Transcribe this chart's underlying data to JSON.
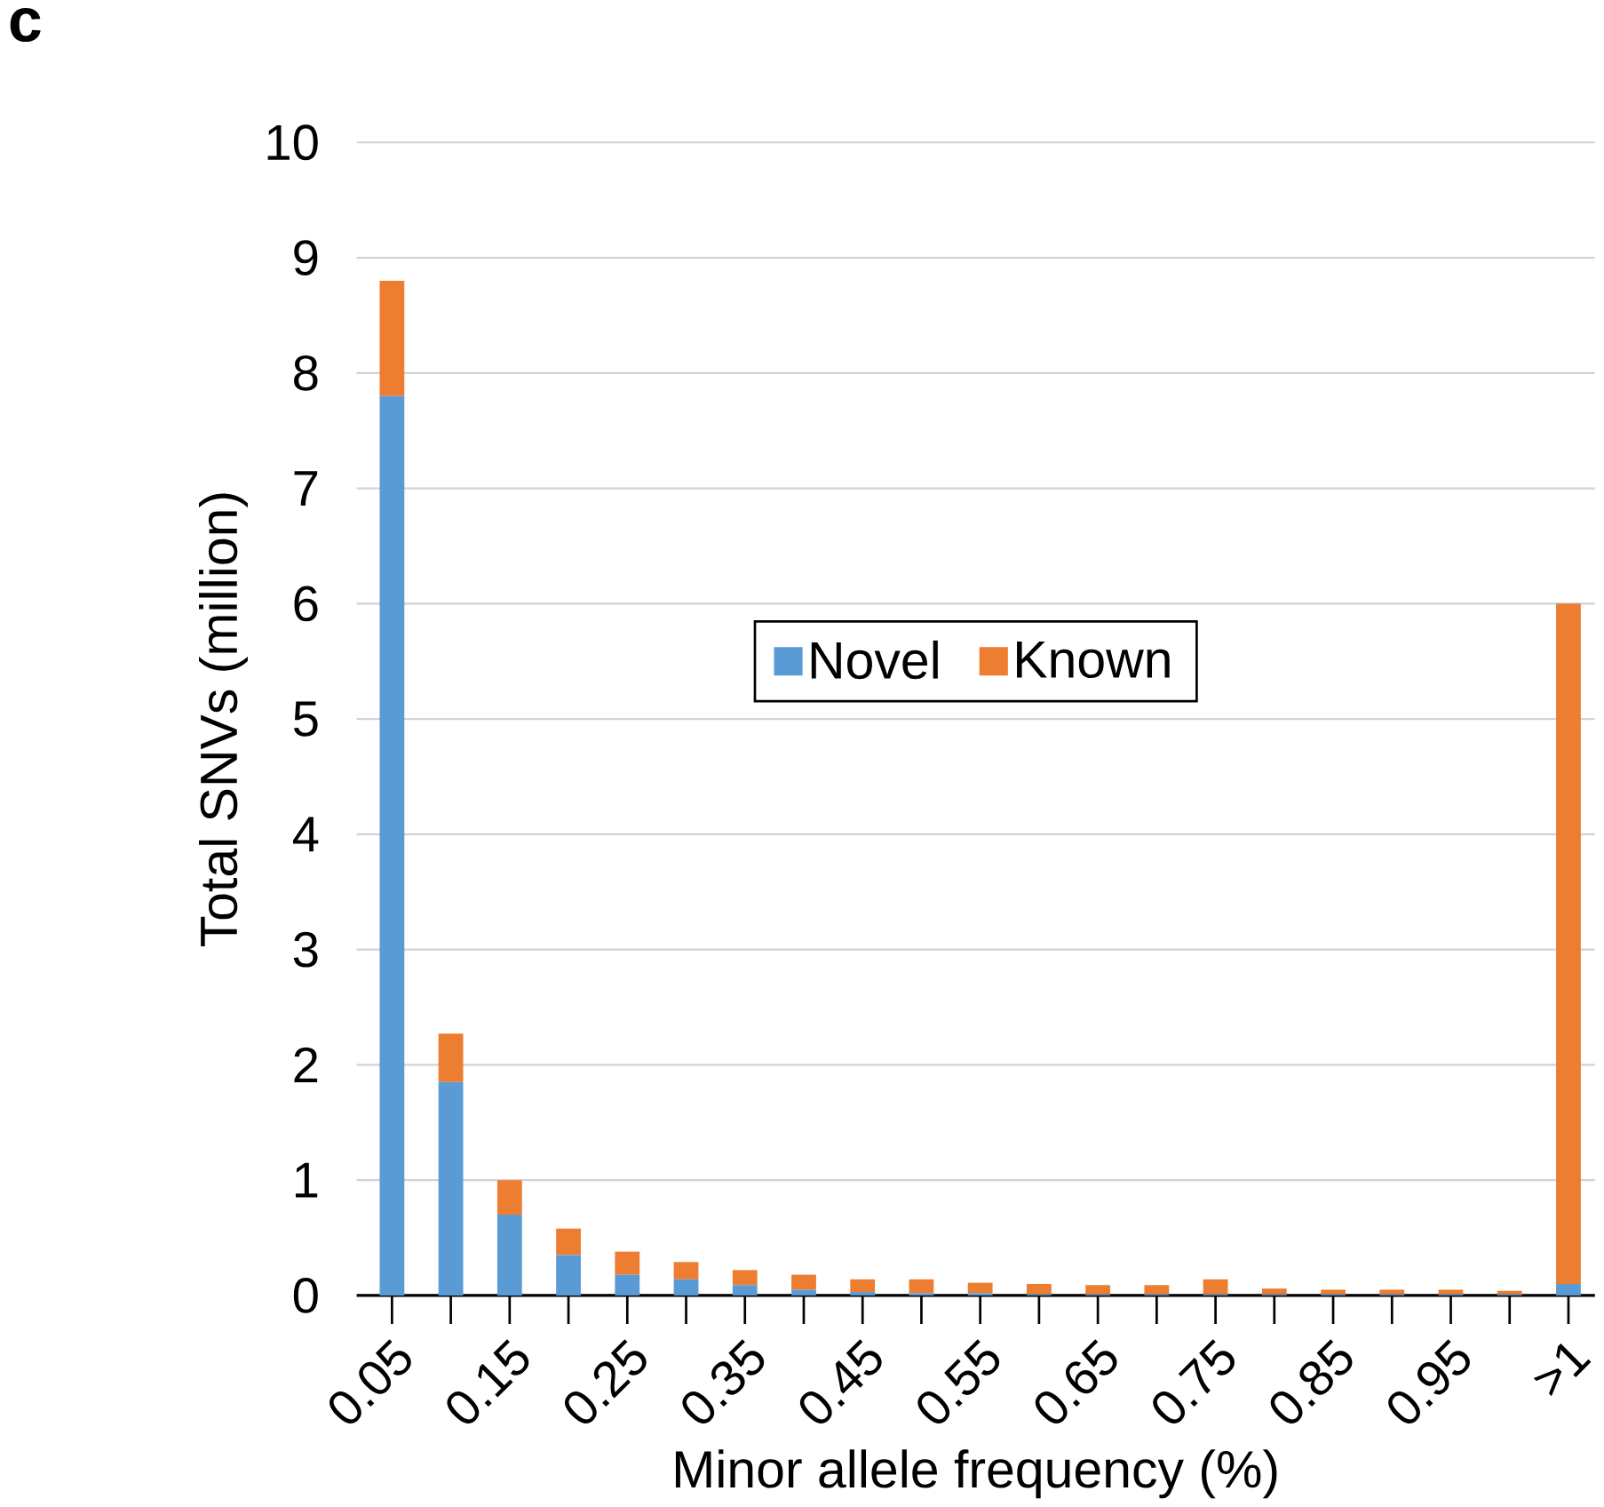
{
  "chart_data": {
    "type": "bar",
    "title": "c",
    "xlabel": "Minor allele frequency (%)",
    "ylabel": "Total SNVs (million)",
    "categories": [
      "0.05",
      null,
      "0.15",
      null,
      "0.25",
      null,
      "0.35",
      null,
      "0.45",
      null,
      "0.55",
      null,
      "0.65",
      null,
      "0.75",
      null,
      "0.85",
      null,
      "0.95",
      null,
      ">1"
    ],
    "stacked": true,
    "series": [
      {
        "name": "Novel",
        "color": "#5b9bd5",
        "values": [
          7.8,
          1.85,
          0.7,
          0.35,
          0.18,
          0.14,
          0.09,
          0.05,
          0.03,
          0.02,
          0.02,
          0.01,
          0.01,
          0.01,
          0.01,
          0.01,
          0.01,
          0.01,
          0.01,
          0.01,
          0.1
        ]
      },
      {
        "name": "Known",
        "color": "#ed7d31",
        "values": [
          1.0,
          0.42,
          0.3,
          0.23,
          0.2,
          0.15,
          0.13,
          0.13,
          0.11,
          0.12,
          0.09,
          0.09,
          0.08,
          0.08,
          0.13,
          0.05,
          0.04,
          0.04,
          0.04,
          0.03,
          5.9
        ]
      }
    ],
    "ylim": [
      0,
      10
    ],
    "yticks": [
      0,
      1,
      2,
      3,
      4,
      5,
      6,
      7,
      8,
      9,
      10
    ],
    "grid": "y",
    "legend": "center"
  }
}
